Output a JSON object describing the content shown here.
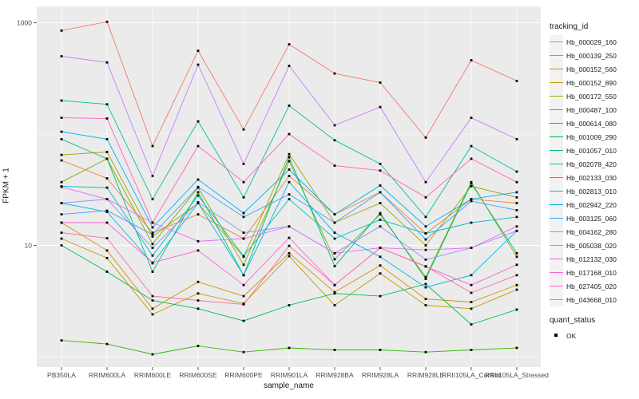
{
  "chart_data": {
    "type": "line",
    "title": "",
    "xlabel": "sample_name",
    "ylabel": "FPKM + 1",
    "y_scale": "log10",
    "y_ticks": [
      1000,
      10
    ],
    "y_tick_labels": [
      "1000",
      "10"
    ],
    "y_minor_gridlines": [
      100,
      1
    ],
    "ylim": [
      0.95,
      1100
    ],
    "grid": true,
    "legend_position": "right",
    "legend": {
      "tracking_title": "tracking_id",
      "quant_title": "quant_status",
      "quant_label": "OK",
      "quant_marker": "black-square"
    },
    "panel_bg": "#EBEBEB",
    "grid_color": "#FFFFFF",
    "point_color": "#000000",
    "tick_color": "#333333",
    "tick_label_color": "#4D4D4D",
    "categories": [
      "PB350LA",
      "RRIM600LA",
      "RRIM600LE",
      "RRIM600SE",
      "RRIM600PE",
      "RRIM901LA",
      "RRIM928BA",
      "RRIM928LA",
      "RRIM928LE",
      "RRII105LA_Control",
      "RRII105LA_Stressed"
    ],
    "series": [
      {
        "name": "Hb_000029_160",
        "color": "#F8766D",
        "values": [
          850,
          1020,
          78,
          560,
          110,
          640,
          350,
          290,
          93,
          460,
          300
        ]
      },
      {
        "name": "Hb_000139_250",
        "color": "#EA8331",
        "values": [
          58,
          40,
          13,
          19,
          11.5,
          42,
          19,
          30,
          12.8,
          26,
          24
        ]
      },
      {
        "name": "Hb_000152_560",
        "color": "#D89000",
        "values": [
          16,
          9,
          2.7,
          4.7,
          3.5,
          8.5,
          3.8,
          6.6,
          3.3,
          3.1,
          4.4
        ]
      },
      {
        "name": "Hb_000152_890",
        "color": "#C09B00",
        "values": [
          11.5,
          7.7,
          2.4,
          3.7,
          3.0,
          8.0,
          2.9,
          5.6,
          2.9,
          2.7,
          4.0
        ]
      },
      {
        "name": "Hb_000172_550",
        "color": "#A3A500",
        "values": [
          65,
          69,
          12,
          24,
          7.9,
          66,
          16,
          24,
          10,
          34,
          27
        ]
      },
      {
        "name": "Hb_000487_100",
        "color": "#7CAE00",
        "values": [
          37,
          60,
          10.3,
          33,
          6.7,
          57,
          7.5,
          19,
          5.2,
          37,
          7.9
        ]
      },
      {
        "name": "Hb_000614_080",
        "color": "#39B600",
        "values": [
          1.4,
          1.3,
          1.05,
          1.25,
          1.1,
          1.2,
          1.15,
          1.15,
          1.1,
          1.15,
          1.2
        ]
      },
      {
        "name": "Hb_001009_290",
        "color": "#00BB4E",
        "values": [
          10,
          5.8,
          3.2,
          2.7,
          2.1,
          2.9,
          3.7,
          3.5,
          4.5,
          1.95,
          2.65
        ]
      },
      {
        "name": "Hb_001057_010",
        "color": "#00BF7D",
        "values": [
          90,
          60,
          5.8,
          30,
          5.4,
          62,
          6.5,
          19.5,
          5.0,
          36,
          8.5
        ]
      },
      {
        "name": "Hb_002078_420",
        "color": "#00C1A3",
        "values": [
          200,
          185,
          26,
          130,
          27,
          180,
          88,
          54,
          18,
          78,
          46
        ]
      },
      {
        "name": "Hb_002133_030",
        "color": "#00BFC4",
        "values": [
          34,
          33,
          8.1,
          28,
          8.0,
          26,
          11.5,
          17,
          12.8,
          16,
          18
        ]
      },
      {
        "name": "Hb_002813_010",
        "color": "#00BAE0",
        "values": [
          24,
          20,
          6.9,
          24,
          5.4,
          37,
          13,
          7.9,
          4.2,
          5.4,
          13.5
        ]
      },
      {
        "name": "Hb_002942_220",
        "color": "#00B0F6",
        "values": [
          105,
          90,
          14.5,
          39,
          19.5,
          48,
          19,
          34.5,
          14.8,
          26,
          30
        ]
      },
      {
        "name": "Hb_003125_060",
        "color": "#35A2FF",
        "values": [
          19,
          20.5,
          12.5,
          33.5,
          18,
          28.7,
          16,
          30,
          11.3,
          25,
          20.7
        ]
      },
      {
        "name": "Hb_004162_280",
        "color": "#9590FF",
        "values": [
          24,
          26,
          9.5,
          24.4,
          13,
          14.8,
          8.5,
          14.8,
          7.45,
          9.5,
          13.5
        ]
      },
      {
        "name": "Hb_005038_020",
        "color": "#C77CFF",
        "values": [
          500,
          440,
          42,
          420,
          54,
          410,
          120,
          175,
          37,
          140,
          90
        ]
      },
      {
        "name": "Hb_012132_030",
        "color": "#E76BF3",
        "values": [
          33.5,
          26,
          16,
          10.9,
          11.5,
          14.8,
          8.5,
          9.5,
          9.1,
          9.5,
          14.8
        ]
      },
      {
        "name": "Hb_017168_010",
        "color": "#FA62DB",
        "values": [
          16,
          16,
          7.0,
          9.0,
          4.4,
          11.7,
          4.4,
          9.5,
          6.45,
          4.4,
          6.7
        ]
      },
      {
        "name": "Hb_027405_020",
        "color": "#FF62BC",
        "values": [
          140,
          138,
          16,
          78,
          37,
          100,
          52,
          47,
          27,
          60,
          37
        ]
      },
      {
        "name": "Hb_043668_010",
        "color": "#FF6A98",
        "values": [
          13,
          11.6,
          3.5,
          3.2,
          2.95,
          9.9,
          4.4,
          9.5,
          6.5,
          3.75,
          5.4
        ]
      }
    ]
  }
}
